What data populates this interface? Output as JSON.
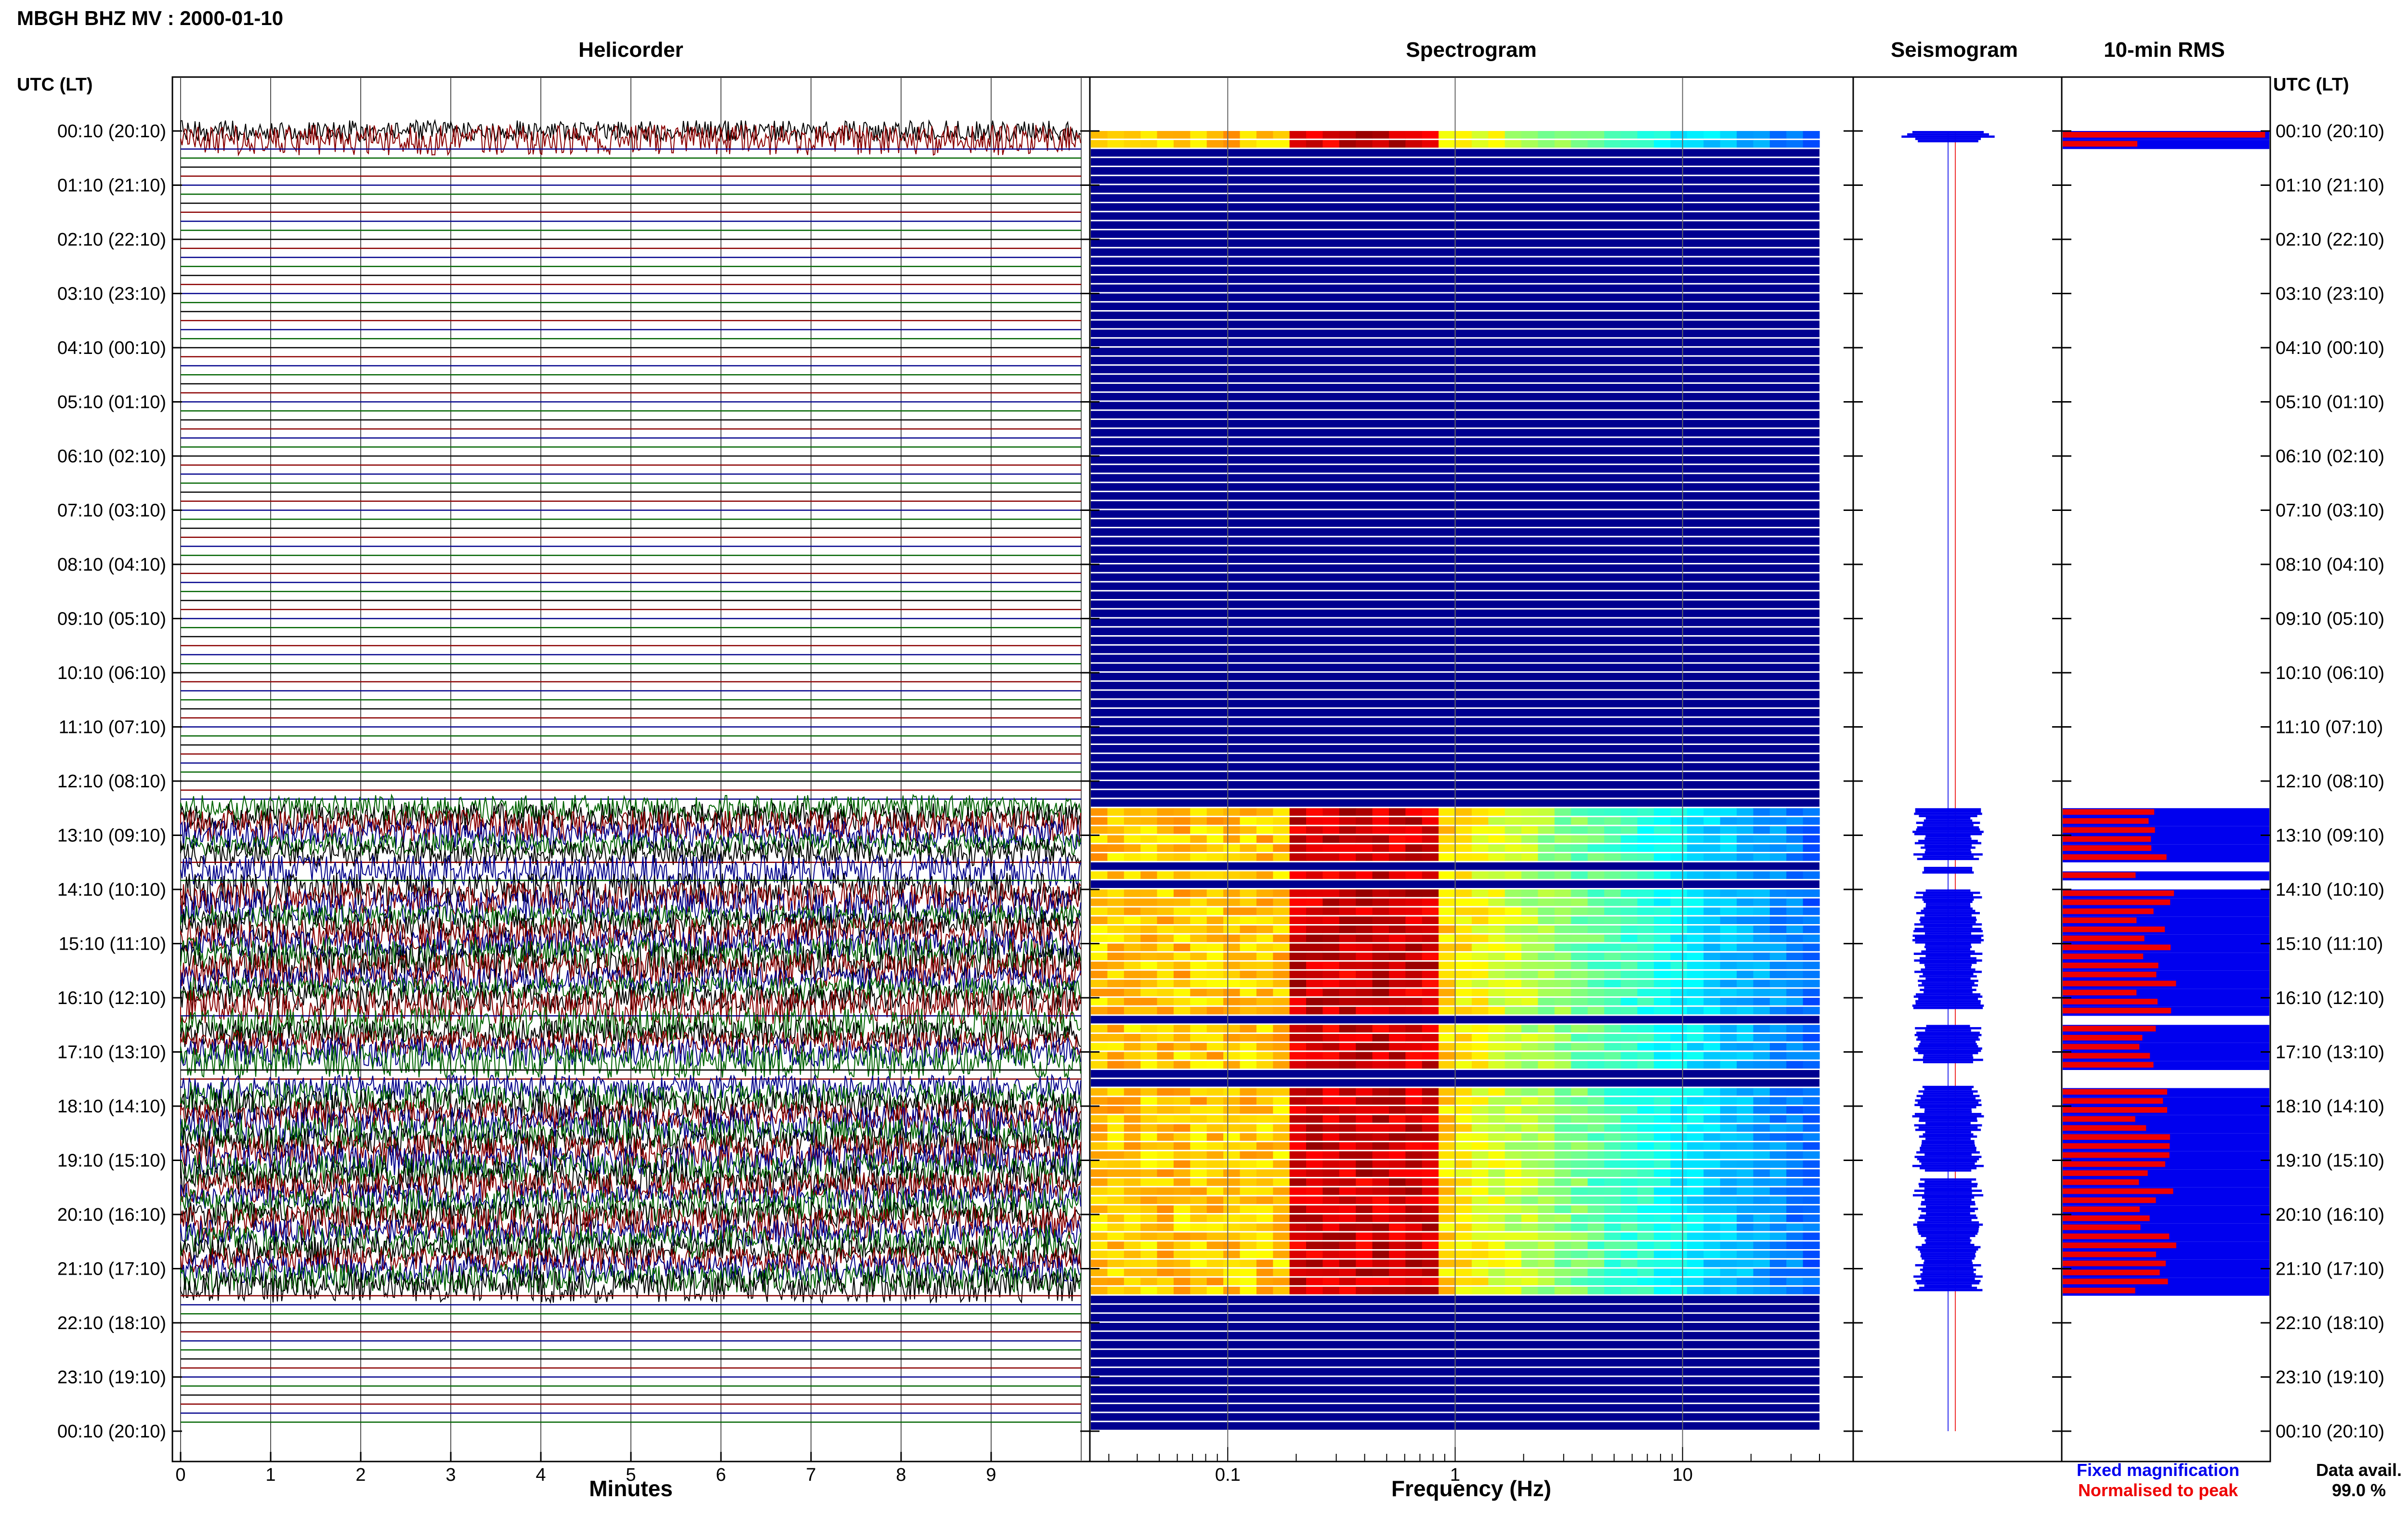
{
  "header": {
    "title": "MBGH BHZ MV : 2000-01-10"
  },
  "panels": {
    "helicorder": "Helicorder",
    "spectrogram": "Spectrogram",
    "seismogram": "Seismogram",
    "rms": "10-min RMS"
  },
  "time_axis": {
    "heading": "UTC (LT)",
    "labels": [
      "00:10 (20:10)",
      "01:10 (21:10)",
      "02:10 (22:10)",
      "03:10 (23:10)",
      "04:10 (00:10)",
      "05:10 (01:10)",
      "06:10 (02:10)",
      "07:10 (03:10)",
      "08:10 (04:10)",
      "09:10 (05:10)",
      "10:10 (06:10)",
      "11:10 (07:10)",
      "12:10 (08:10)",
      "13:10 (09:10)",
      "14:10 (10:10)",
      "15:10 (11:10)",
      "16:10 (12:10)",
      "17:10 (13:10)",
      "18:10 (14:10)",
      "19:10 (15:10)",
      "20:10 (16:10)",
      "21:10 (17:10)",
      "22:10 (18:10)",
      "23:10 (19:10)",
      "00:10 (20:10)"
    ]
  },
  "x_axes": {
    "minutes": {
      "label": "Minutes",
      "ticks": [
        "0",
        "1",
        "2",
        "3",
        "4",
        "5",
        "6",
        "7",
        "8",
        "9"
      ]
    },
    "frequency": {
      "label": "Frequency (Hz)",
      "ticks": [
        "0.1",
        "1",
        "10"
      ],
      "scale": "log"
    }
  },
  "legend": {
    "fixed": "Fixed magnification",
    "normalised": "Normalised to peak",
    "fixed_color": "#0000ee",
    "normalised_color": "#ee0000"
  },
  "availability": {
    "label": "Data avail.",
    "value": "99.0 %"
  },
  "chart_data": {
    "type": "heatmap",
    "title": "MBGH BHZ MV : 2000-01-10",
    "rows_per_hour": 6,
    "trace_colors": [
      "#000000",
      "#8b0000",
      "#00008b",
      "#006400"
    ],
    "activity_windows_utc_hours": [
      [
        0.0,
        0.17
      ],
      [
        12.5,
        13.7
      ],
      [
        14.0,
        16.2
      ],
      [
        16.5,
        17.2
      ],
      [
        17.6,
        21.4
      ]
    ],
    "quiet_gaps_utc_hours": [
      [
        13.45,
        13.55
      ],
      [
        16.2,
        16.5
      ],
      [
        17.2,
        17.55
      ],
      [
        19.2,
        19.3
      ]
    ],
    "series": [
      {
        "name": "Fixed magnification",
        "color": "#0000ee"
      },
      {
        "name": "Normalised to peak",
        "color": "#ee0000"
      }
    ],
    "data_availability_percent": 99.0,
    "frequency_range_hz": [
      0.025,
      40
    ],
    "minutes_range": [
      0,
      10
    ]
  }
}
